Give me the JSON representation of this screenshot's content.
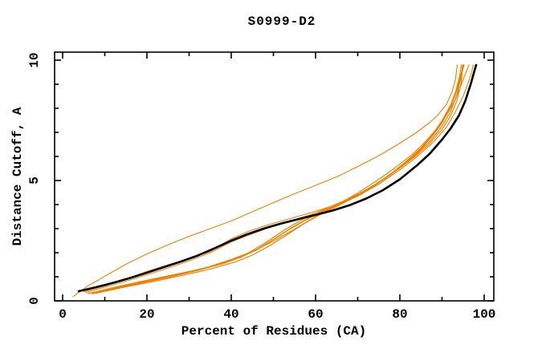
{
  "chart_data": {
    "type": "line",
    "title": "S0999-D2",
    "xlabel": "Percent of Residues (CA)",
    "ylabel": "Distance Cutoff, A",
    "xlim": [
      -2,
      102.3
    ],
    "ylim": [
      0,
      10.33
    ],
    "x_major_ticks": [
      0,
      20,
      40,
      60,
      80,
      100
    ],
    "x_minor_ticks": [
      10,
      30,
      50,
      70,
      90
    ],
    "y_major_ticks": [
      0,
      5,
      10
    ],
    "y_minor_ticks": [
      1,
      2,
      3,
      4,
      6,
      7,
      8,
      9
    ],
    "grid": false,
    "legend": "none",
    "frame": "full-box-inward-ticks",
    "colors": {
      "reference": "#000000",
      "model": "#ee8000"
    },
    "series": [
      {
        "name": "model-1-high-outlier",
        "role": "model",
        "color": "#ee8000",
        "width": 1.1,
        "points": [
          [
            2.5,
            0.18
          ],
          [
            6,
            0.62
          ],
          [
            10,
            1.02
          ],
          [
            15,
            1.52
          ],
          [
            20,
            1.95
          ],
          [
            25,
            2.33
          ],
          [
            30,
            2.68
          ],
          [
            35,
            3.0
          ],
          [
            40,
            3.32
          ],
          [
            45,
            3.7
          ],
          [
            50,
            4.08
          ],
          [
            55,
            4.45
          ],
          [
            60,
            4.8
          ],
          [
            65,
            5.15
          ],
          [
            70,
            5.58
          ],
          [
            75,
            6.03
          ],
          [
            80,
            6.55
          ],
          [
            84,
            7.0
          ],
          [
            87,
            7.4
          ],
          [
            89,
            7.72
          ],
          [
            91,
            8.15
          ],
          [
            92.3,
            8.65
          ],
          [
            93.2,
            9.2
          ],
          [
            93.6,
            9.8
          ]
        ]
      },
      {
        "name": "model-2",
        "role": "model",
        "color": "#ee8000",
        "width": 1.1,
        "points": [
          [
            5,
            0.38
          ],
          [
            10,
            0.62
          ],
          [
            15,
            0.9
          ],
          [
            20,
            1.22
          ],
          [
            25,
            1.5
          ],
          [
            30,
            1.75
          ],
          [
            35,
            2.05
          ],
          [
            40,
            2.58
          ],
          [
            44,
            2.88
          ],
          [
            48,
            3.12
          ],
          [
            52,
            3.32
          ],
          [
            56,
            3.52
          ],
          [
            60,
            3.72
          ],
          [
            65,
            4.0
          ],
          [
            70,
            4.42
          ],
          [
            75,
            4.92
          ],
          [
            80,
            5.52
          ],
          [
            84,
            6.05
          ],
          [
            87,
            6.52
          ],
          [
            90,
            7.12
          ],
          [
            92,
            7.68
          ],
          [
            93.5,
            8.3
          ],
          [
            94.5,
            9.0
          ],
          [
            95,
            9.8
          ]
        ]
      },
      {
        "name": "model-3",
        "role": "model",
        "color": "#ee8000",
        "width": 1.1,
        "points": [
          [
            5.5,
            0.35
          ],
          [
            11,
            0.62
          ],
          [
            17,
            0.92
          ],
          [
            23,
            1.25
          ],
          [
            29,
            1.6
          ],
          [
            35,
            2.0
          ],
          [
            40,
            2.45
          ],
          [
            44,
            2.72
          ],
          [
            48,
            2.98
          ],
          [
            52,
            3.2
          ],
          [
            56,
            3.42
          ],
          [
            60,
            3.65
          ],
          [
            65,
            3.95
          ],
          [
            70,
            4.35
          ],
          [
            75,
            4.85
          ],
          [
            80,
            5.45
          ],
          [
            84,
            5.98
          ],
          [
            88,
            6.6
          ],
          [
            91,
            7.2
          ],
          [
            93,
            7.8
          ],
          [
            95,
            8.5
          ],
          [
            96.3,
            9.1
          ],
          [
            97,
            9.5
          ],
          [
            97.4,
            9.8
          ]
        ]
      },
      {
        "name": "model-4",
        "role": "model",
        "color": "#ee8000",
        "width": 1.2,
        "points": [
          [
            6,
            0.3
          ],
          [
            12,
            0.55
          ],
          [
            18,
            0.78
          ],
          [
            24,
            1.0
          ],
          [
            30,
            1.22
          ],
          [
            35,
            1.42
          ],
          [
            40,
            1.68
          ],
          [
            44,
            1.98
          ],
          [
            48,
            2.4
          ],
          [
            52,
            2.88
          ],
          [
            56,
            3.3
          ],
          [
            60,
            3.65
          ],
          [
            64,
            3.95
          ],
          [
            68,
            4.25
          ],
          [
            72,
            4.6
          ],
          [
            76,
            5.05
          ],
          [
            80,
            5.55
          ],
          [
            84,
            6.1
          ],
          [
            87,
            6.6
          ],
          [
            90,
            7.25
          ],
          [
            92,
            7.85
          ],
          [
            93.5,
            8.55
          ],
          [
            94.5,
            9.25
          ],
          [
            94.9,
            9.8
          ]
        ]
      },
      {
        "name": "model-5",
        "role": "model",
        "color": "#ee8000",
        "width": 1.6,
        "points": [
          [
            7,
            0.3
          ],
          [
            14,
            0.58
          ],
          [
            20,
            0.8
          ],
          [
            26,
            1.02
          ],
          [
            32,
            1.27
          ],
          [
            38,
            1.55
          ],
          [
            42,
            1.8
          ],
          [
            46,
            2.12
          ],
          [
            50,
            2.55
          ],
          [
            54,
            3.0
          ],
          [
            58,
            3.4
          ],
          [
            62,
            3.75
          ],
          [
            66,
            4.05
          ],
          [
            70,
            4.4
          ],
          [
            74,
            4.8
          ],
          [
            78,
            5.28
          ],
          [
            82,
            5.85
          ],
          [
            85,
            6.3
          ],
          [
            88,
            6.92
          ],
          [
            90,
            7.4
          ],
          [
            92,
            8.05
          ],
          [
            93.5,
            8.75
          ],
          [
            94.6,
            9.45
          ],
          [
            95.2,
            9.8
          ]
        ]
      },
      {
        "name": "model-6",
        "role": "model",
        "color": "#ee8000",
        "width": 1.2,
        "points": [
          [
            8,
            0.32
          ],
          [
            15,
            0.58
          ],
          [
            22,
            0.82
          ],
          [
            29,
            1.08
          ],
          [
            35,
            1.32
          ],
          [
            41,
            1.62
          ],
          [
            45,
            1.9
          ],
          [
            49,
            2.28
          ],
          [
            53,
            2.72
          ],
          [
            57,
            3.18
          ],
          [
            61,
            3.58
          ],
          [
            65,
            3.92
          ],
          [
            69,
            4.28
          ],
          [
            73,
            4.68
          ],
          [
            77,
            5.15
          ],
          [
            81,
            5.72
          ],
          [
            85,
            6.35
          ],
          [
            88,
            6.98
          ],
          [
            90,
            7.48
          ],
          [
            92,
            8.12
          ],
          [
            93.3,
            8.72
          ],
          [
            94.2,
            9.35
          ],
          [
            94.6,
            9.8
          ]
        ]
      },
      {
        "name": "model-7",
        "role": "model",
        "color": "#ee8000",
        "width": 1.1,
        "points": [
          [
            9,
            0.4
          ],
          [
            16,
            0.68
          ],
          [
            22,
            0.9
          ],
          [
            28,
            1.12
          ],
          [
            34,
            1.38
          ],
          [
            40,
            1.72
          ],
          [
            45,
            2.05
          ],
          [
            50,
            2.48
          ],
          [
            55,
            2.98
          ],
          [
            60,
            3.5
          ],
          [
            65,
            3.98
          ],
          [
            70,
            4.48
          ],
          [
            75,
            5.05
          ],
          [
            79,
            5.55
          ],
          [
            83,
            6.1
          ],
          [
            86,
            6.6
          ],
          [
            89,
            7.2
          ],
          [
            91,
            7.7
          ],
          [
            93,
            8.3
          ],
          [
            94.5,
            8.95
          ],
          [
            95.8,
            9.55
          ],
          [
            96.4,
            9.8
          ]
        ]
      },
      {
        "name": "reference-black-curve",
        "role": "reference",
        "color": "#000000",
        "width": 2.6,
        "points": [
          [
            3.8,
            0.4
          ],
          [
            8,
            0.57
          ],
          [
            12,
            0.75
          ],
          [
            16,
            0.95
          ],
          [
            20,
            1.17
          ],
          [
            24,
            1.4
          ],
          [
            28,
            1.63
          ],
          [
            32,
            1.88
          ],
          [
            36,
            2.18
          ],
          [
            40,
            2.5
          ],
          [
            44,
            2.78
          ],
          [
            48,
            3.02
          ],
          [
            52,
            3.22
          ],
          [
            56,
            3.4
          ],
          [
            60,
            3.57
          ],
          [
            64,
            3.75
          ],
          [
            68,
            3.97
          ],
          [
            72,
            4.25
          ],
          [
            76,
            4.6
          ],
          [
            80,
            5.05
          ],
          [
            84,
            5.62
          ],
          [
            87,
            6.1
          ],
          [
            90,
            6.7
          ],
          [
            92,
            7.15
          ],
          [
            94,
            7.7
          ],
          [
            95.5,
            8.3
          ],
          [
            96.8,
            9.0
          ],
          [
            97.6,
            9.5
          ],
          [
            98.1,
            9.8
          ]
        ]
      }
    ]
  }
}
